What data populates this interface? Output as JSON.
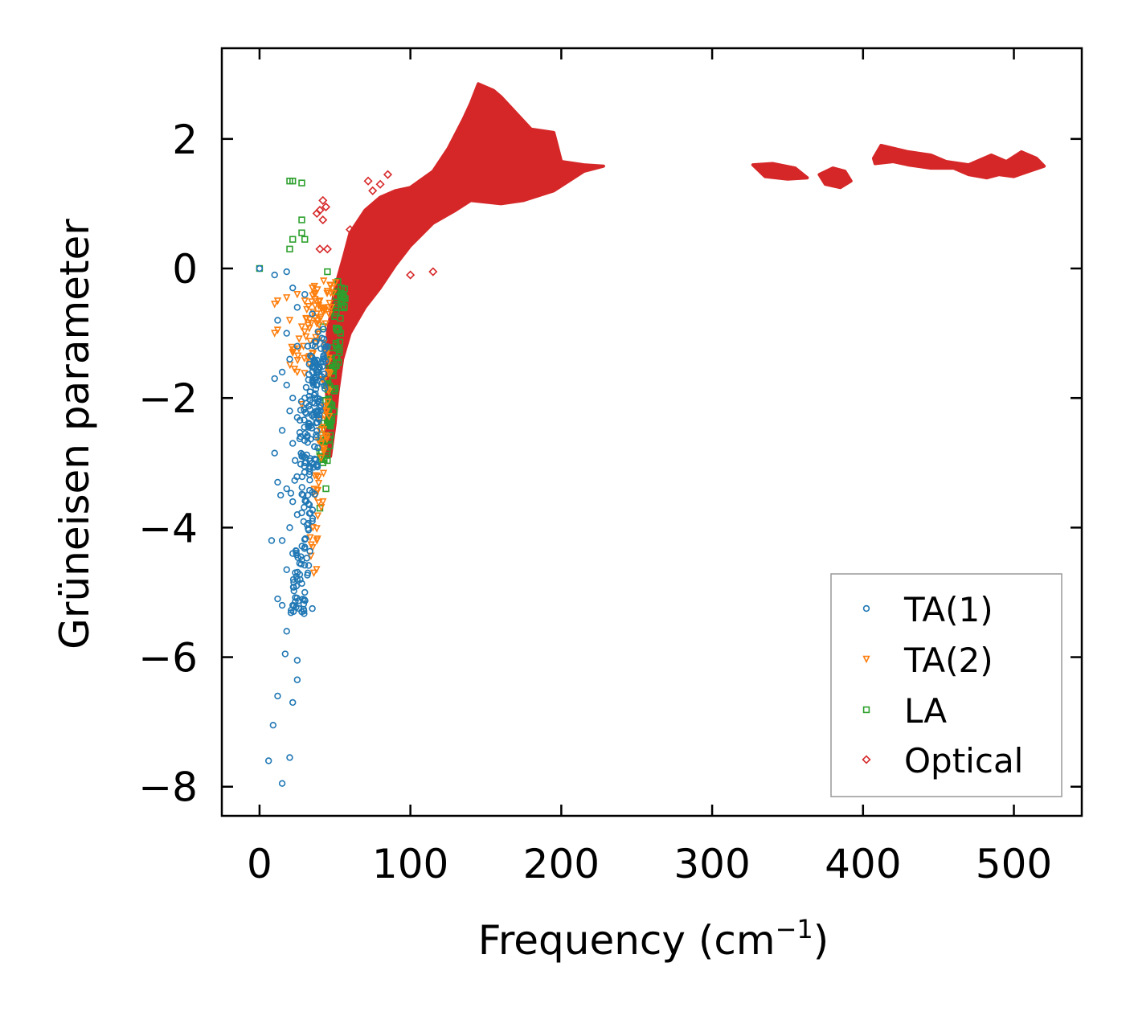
{
  "chart_data": {
    "type": "scatter",
    "title": "",
    "xlabel_main": "Frequency (cm",
    "xlabel_sup": "−1",
    "xlabel_close": ")",
    "ylabel": "Grüneisen parameter",
    "xlim": [
      -25,
      545
    ],
    "ylim": [
      -8.45,
      3.4
    ],
    "xticks": [
      0,
      100,
      200,
      300,
      400,
      500
    ],
    "yticks": [
      2,
      0,
      -2,
      -4,
      -6,
      -8
    ],
    "xtick_labels": [
      "0",
      "100",
      "200",
      "300",
      "400",
      "500"
    ],
    "ytick_labels": [
      "2",
      "0",
      "−2",
      "−4",
      "−6",
      "−8"
    ],
    "legend_position": "lower-right",
    "series": [
      {
        "name": "TA(1)",
        "marker": "circle",
        "color": "#1f77b4",
        "points": [
          [
            0,
            0
          ],
          [
            10,
            -0.1
          ],
          [
            18,
            -0.05
          ],
          [
            22,
            -0.3
          ],
          [
            25,
            -0.6
          ],
          [
            12,
            -0.8
          ],
          [
            18,
            -1.0
          ],
          [
            25,
            -1.2
          ],
          [
            20,
            -1.4
          ],
          [
            15,
            -1.6
          ],
          [
            10,
            -1.7
          ],
          [
            18,
            -1.8
          ],
          [
            22,
            -2.0
          ],
          [
            20,
            -2.2
          ],
          [
            25,
            -2.3
          ],
          [
            15,
            -2.5
          ],
          [
            22,
            -2.7
          ],
          [
            10,
            -2.85
          ],
          [
            28,
            -2.9
          ],
          [
            12,
            -3.3
          ],
          [
            18,
            -3.4
          ],
          [
            22,
            -3.6
          ],
          [
            14,
            -3.5
          ],
          [
            25,
            -3.8
          ],
          [
            20,
            -4.0
          ],
          [
            8,
            -4.2
          ],
          [
            15,
            -4.2
          ],
          [
            22,
            -4.4
          ],
          [
            28,
            -4.5
          ],
          [
            18,
            -4.65
          ],
          [
            25,
            -4.8
          ],
          [
            30,
            -5.0
          ],
          [
            12,
            -5.1
          ],
          [
            15,
            -5.2
          ],
          [
            22,
            -5.2
          ],
          [
            28,
            -5.3
          ],
          [
            18,
            -5.6
          ],
          [
            17,
            -5.95
          ],
          [
            25,
            -6.05
          ],
          [
            25,
            -6.35
          ],
          [
            12,
            -6.6
          ],
          [
            22,
            -6.7
          ],
          [
            9,
            -7.05
          ],
          [
            6,
            -7.6
          ],
          [
            20,
            -7.55
          ],
          [
            15,
            -7.95
          ],
          [
            30,
            -0.4
          ],
          [
            35,
            -0.7
          ],
          [
            32,
            -1.2
          ],
          [
            35,
            -1.6
          ],
          [
            30,
            -2.0
          ],
          [
            33,
            -2.4
          ],
          [
            30,
            -3.0
          ],
          [
            32,
            -3.5
          ],
          [
            35,
            -3.9
          ],
          [
            30,
            -4.3
          ],
          [
            32,
            -4.7
          ],
          [
            35,
            -5.25
          ]
        ],
        "clusters": [
          {
            "from": [
              25,
              -5.3
            ],
            "to": [
              42,
              -1.0
            ],
            "count": 160,
            "spread": 4
          },
          {
            "from": [
              24,
              -3.5
            ],
            "to": [
              38,
              -1.2
            ],
            "count": 60,
            "spread": 4
          }
        ]
      },
      {
        "name": "TA(2)",
        "marker": "triangle-down",
        "color": "#ff7f0e",
        "points": [
          [
            10,
            -0.55
          ],
          [
            12,
            -0.5
          ],
          [
            10,
            -1.0
          ],
          [
            12,
            -0.95
          ],
          [
            18,
            -0.45
          ],
          [
            20,
            -0.8
          ],
          [
            25,
            -0.4
          ],
          [
            28,
            -0.9
          ],
          [
            30,
            -0.5
          ],
          [
            35,
            -0.3
          ],
          [
            38,
            -0.7
          ],
          [
            40,
            -0.5
          ],
          [
            45,
            -0.35
          ],
          [
            22,
            -1.3
          ],
          [
            25,
            -1.6
          ],
          [
            28,
            -2.1
          ],
          [
            40,
            -2.5
          ],
          [
            42,
            -2.8
          ],
          [
            38,
            -3.2
          ],
          [
            42,
            -3.6
          ],
          [
            38,
            -4.2
          ],
          [
            36,
            -4.7
          ]
        ],
        "clusters": [
          {
            "from": [
              25,
              -1.5
            ],
            "to": [
              45,
              -0.3
            ],
            "count": 70,
            "spread": 6
          },
          {
            "from": [
              35,
              -4.7
            ],
            "to": [
              46,
              -1.2
            ],
            "count": 50,
            "spread": 3
          }
        ]
      },
      {
        "name": "LA",
        "marker": "square",
        "color": "#2ca02c",
        "points": [
          [
            0,
            0
          ],
          [
            20,
            1.35
          ],
          [
            22,
            1.35
          ],
          [
            28,
            1.32
          ],
          [
            28,
            0.75
          ],
          [
            28,
            0.55
          ],
          [
            22,
            0.45
          ],
          [
            30,
            0.45
          ],
          [
            20,
            0.3
          ],
          [
            45,
            -0.05
          ],
          [
            42,
            -0.9
          ],
          [
            55,
            -0.5
          ],
          [
            45,
            -2.2
          ],
          [
            42,
            -3.0
          ],
          [
            44,
            -3.4
          ],
          [
            40,
            -3.7
          ]
        ],
        "clusters": [
          {
            "from": [
              42,
              -3.0
            ],
            "to": [
              55,
              -0.2
            ],
            "count": 90,
            "spread": 3
          }
        ]
      },
      {
        "name": "Optical",
        "marker": "diamond",
        "color": "#d62728",
        "points": [
          [
            38,
            0.85
          ],
          [
            40,
            0.9
          ],
          [
            42,
            1.05
          ],
          [
            44,
            0.95
          ],
          [
            40,
            0.3
          ],
          [
            45,
            0.3
          ],
          [
            42,
            0.75
          ],
          [
            60,
            0.6
          ],
          [
            72,
            1.35
          ],
          [
            75,
            1.2
          ],
          [
            80,
            1.3
          ],
          [
            85,
            1.45
          ],
          [
            100,
            -0.1
          ],
          [
            115,
            -0.05
          ],
          [
            60,
            0.1
          ]
        ],
        "regions": [
          {
            "polygon": [
              [
                44,
                -2.9
              ],
              [
                45,
                -1.0
              ],
              [
                50,
                -0.3
              ],
              [
                56,
                0.2
              ],
              [
                60,
                0.55
              ],
              [
                70,
                0.9
              ],
              [
                80,
                1.1
              ],
              [
                90,
                1.2
              ],
              [
                100,
                1.25
              ],
              [
                115,
                1.5
              ],
              [
                125,
                1.85
              ],
              [
                135,
                2.3
              ],
              [
                140,
                2.55
              ],
              [
                145,
                2.85
              ],
              [
                155,
                2.75
              ],
              [
                160,
                2.65
              ],
              [
                170,
                2.4
              ],
              [
                180,
                2.15
              ],
              [
                195,
                2.1
              ],
              [
                200,
                1.65
              ],
              [
                215,
                1.6
              ],
              [
                228,
                1.58
              ],
              [
                215,
                1.5
              ],
              [
                205,
                1.35
              ],
              [
                195,
                1.2
              ],
              [
                175,
                1.05
              ],
              [
                160,
                1.0
              ],
              [
                140,
                1.05
              ],
              [
                130,
                0.9
              ],
              [
                115,
                0.7
              ],
              [
                100,
                0.35
              ],
              [
                90,
                0.05
              ],
              [
                80,
                -0.3
              ],
              [
                70,
                -0.6
              ],
              [
                60,
                -1.0
              ],
              [
                55,
                -1.4
              ],
              [
                52,
                -1.9
              ],
              [
                50,
                -2.4
              ],
              [
                47,
                -2.9
              ]
            ]
          },
          {
            "polygon": [
              [
                327,
                1.6
              ],
              [
                340,
                1.62
              ],
              [
                355,
                1.55
              ],
              [
                363,
                1.4
              ],
              [
                350,
                1.38
              ],
              [
                335,
                1.42
              ]
            ]
          },
          {
            "polygon": [
              [
                371,
                1.45
              ],
              [
                380,
                1.55
              ],
              [
                388,
                1.5
              ],
              [
                392,
                1.35
              ],
              [
                385,
                1.25
              ],
              [
                375,
                1.3
              ]
            ]
          },
          {
            "polygon": [
              [
                407,
                1.7
              ],
              [
                412,
                1.9
              ],
              [
                430,
                1.8
              ],
              [
                445,
                1.75
              ],
              [
                455,
                1.65
              ],
              [
                470,
                1.6
              ],
              [
                485,
                1.75
              ],
              [
                495,
                1.65
              ],
              [
                505,
                1.8
              ],
              [
                515,
                1.7
              ],
              [
                520,
                1.58
              ],
              [
                510,
                1.5
              ],
              [
                500,
                1.42
              ],
              [
                490,
                1.45
              ],
              [
                482,
                1.4
              ],
              [
                470,
                1.45
              ],
              [
                460,
                1.55
              ],
              [
                445,
                1.55
              ],
              [
                430,
                1.6
              ],
              [
                420,
                1.65
              ],
              [
                408,
                1.62
              ]
            ]
          }
        ]
      }
    ]
  }
}
